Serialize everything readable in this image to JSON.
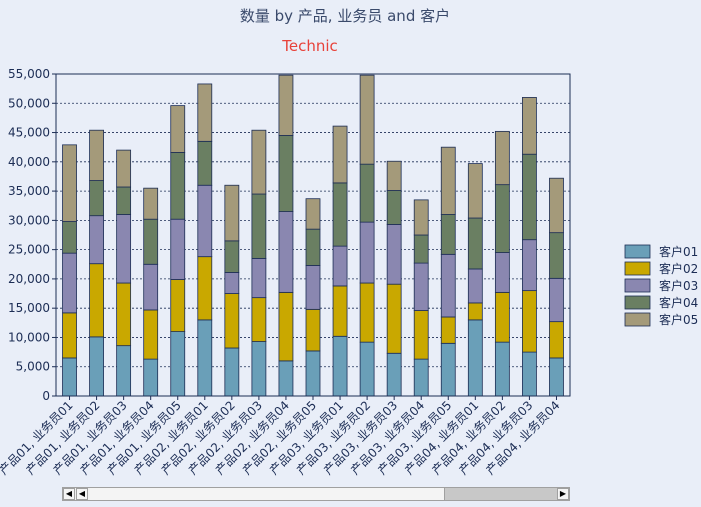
{
  "chart_data": {
    "type": "bar",
    "stacked": true,
    "title": "数量 by 产品, 业务员 and 客户",
    "subtitle": "Technic",
    "xlabel": "",
    "ylabel": "",
    "ylim": [
      0,
      55000
    ],
    "yticks": [
      "0",
      "5,000",
      "10,000",
      "15,000",
      "20,000",
      "25,000",
      "30,000",
      "35,000",
      "40,000",
      "45,000",
      "50,000",
      "55,000"
    ],
    "grid": true,
    "legend_position": "right",
    "categories": [
      "产品01, 业务员01",
      "产品01, 业务员02",
      "产品01, 业务员03",
      "产品01, 业务员04",
      "产品01, 业务员05",
      "产品02, 业务员01",
      "产品02, 业务员02",
      "产品02, 业务员03",
      "产品02, 业务员04",
      "产品02, 业务员05",
      "产品03, 业务员01",
      "产品03, 业务员02",
      "产品03, 业务员03",
      "产品03, 业务员04",
      "产品03, 业务员05",
      "产品04, 业务员01",
      "产品04, 业务员02",
      "产品04, 业务员03",
      "产品04, 业务员04"
    ],
    "series": [
      {
        "name": "客户01",
        "color": "#6a9fb8",
        "values": [
          6500,
          10100,
          8600,
          6300,
          11000,
          13000,
          8200,
          9300,
          6000,
          7700,
          10200,
          9200,
          7300,
          6300,
          9000,
          13000,
          9200,
          7500,
          6500
        ]
      },
      {
        "name": "客户02",
        "color": "#c9a800",
        "values": [
          7700,
          12500,
          10700,
          8400,
          8900,
          10800,
          9300,
          7500,
          11700,
          7100,
          8600,
          10100,
          11800,
          8300,
          4500,
          2900,
          8500,
          10500,
          6200
        ]
      },
      {
        "name": "客户03",
        "color": "#8a87b0",
        "values": [
          10200,
          8200,
          11700,
          7800,
          10300,
          12200,
          3600,
          6700,
          13800,
          7500,
          6800,
          10400,
          10200,
          8100,
          10700,
          5800,
          6800,
          8700,
          7400
        ]
      },
      {
        "name": "客户04",
        "color": "#6a7f62",
        "values": [
          5400,
          6000,
          4700,
          7700,
          11400,
          7500,
          5400,
          11000,
          13000,
          6200,
          10800,
          9900,
          5800,
          4800,
          6800,
          8700,
          11600,
          14600,
          7800
        ]
      },
      {
        "name": "客户05",
        "color": "#a49a7a",
        "values": [
          13100,
          8600,
          6300,
          5300,
          8000,
          9800,
          9500,
          10900,
          10300,
          5200,
          9700,
          15200,
          5000,
          6000,
          11500,
          9300,
          9100,
          9700,
          9300
        ]
      }
    ]
  }
}
